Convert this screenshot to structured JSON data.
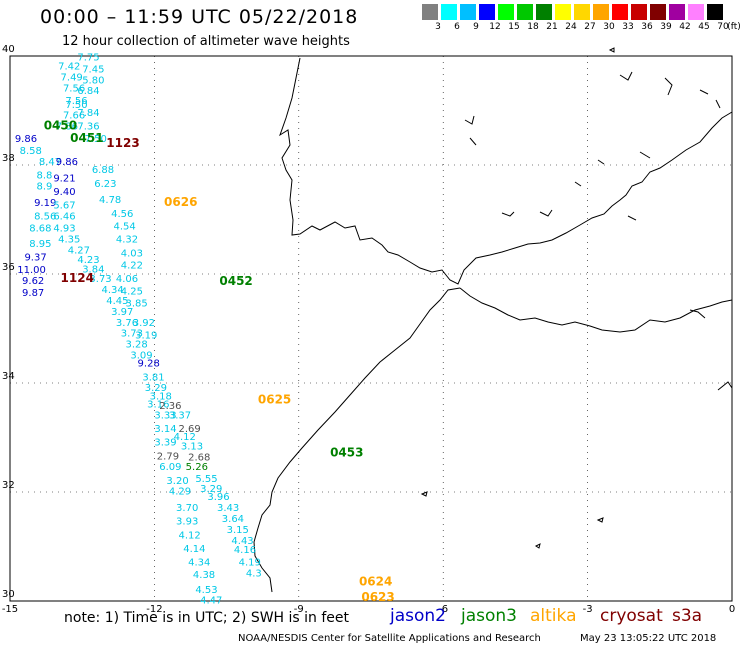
{
  "header": {
    "title": "00:00 – 11:59 UTC 05/22/2018",
    "subtitle": "12 hour collection of altimeter wave heights"
  },
  "legend": {
    "unit": "(ft)",
    "bins": [
      {
        "label": "3",
        "color": "#808080"
      },
      {
        "label": "6",
        "color": "#00ffff"
      },
      {
        "label": "9",
        "color": "#00bfff"
      },
      {
        "label": "12",
        "color": "#0000ff"
      },
      {
        "label": "15",
        "color": "#00ff00"
      },
      {
        "label": "18",
        "color": "#00c800"
      },
      {
        "label": "21",
        "color": "#008000"
      },
      {
        "label": "24",
        "color": "#ffff00"
      },
      {
        "label": "27",
        "color": "#ffd700"
      },
      {
        "label": "30",
        "color": "#ffa500"
      },
      {
        "label": "33",
        "color": "#ff0000"
      },
      {
        "label": "36",
        "color": "#c80000"
      },
      {
        "label": "39",
        "color": "#800000"
      },
      {
        "label": "42",
        "color": "#a000a0"
      },
      {
        "label": "45",
        "color": "#ff80ff"
      },
      {
        "label": "70",
        "color": "#000000"
      }
    ]
  },
  "axes": {
    "lon_ticks": [
      "-15",
      "-12",
      "-9",
      "-6",
      "-3",
      "0"
    ],
    "lat_ticks": [
      "40",
      "38",
      "36",
      "34",
      "32",
      "30"
    ],
    "lon_range": [
      -15,
      0
    ],
    "lat_range": [
      30,
      40
    ]
  },
  "colors": {
    "jason2": "#0000c8",
    "jason3": "#008000",
    "altika": "#ffa500",
    "cryosat": "#800000",
    "s3a": "#800000",
    "cyan_label": "#00c8e6",
    "gray_label": "#505050"
  },
  "pass_labels": [
    {
      "text": "0450",
      "color": "jason3",
      "lon": -14.3,
      "lat": 38.65
    },
    {
      "text": "0451",
      "color": "jason3",
      "lon": -13.75,
      "lat": 38.42
    },
    {
      "text": "1123",
      "color": "cryosat",
      "lon": -13.0,
      "lat": 38.33
    },
    {
      "text": "0626",
      "color": "altika",
      "lon": -11.8,
      "lat": 37.25
    },
    {
      "text": "1124",
      "color": "cryosat",
      "lon": -13.95,
      "lat": 35.85
    },
    {
      "text": "0452",
      "color": "jason3",
      "lon": -10.65,
      "lat": 35.8
    },
    {
      "text": "0625",
      "color": "altika",
      "lon": -9.85,
      "lat": 33.62
    },
    {
      "text": "0453",
      "color": "jason3",
      "lon": -8.35,
      "lat": 32.65
    },
    {
      "text": "0624",
      "color": "altika",
      "lon": -7.75,
      "lat": 30.28
    },
    {
      "text": "0623",
      "color": "altika",
      "lon": -7.7,
      "lat": 30.0
    }
  ],
  "observations": [
    {
      "v": "7.75",
      "c": "cyan_label",
      "lon": -13.6,
      "lat": 39.92
    },
    {
      "v": "7.42",
      "c": "cyan_label",
      "lon": -14.0,
      "lat": 39.75
    },
    {
      "v": "7.45",
      "c": "cyan_label",
      "lon": -13.5,
      "lat": 39.7
    },
    {
      "v": "7.49",
      "c": "cyan_label",
      "lon": -13.95,
      "lat": 39.55
    },
    {
      "v": "5.80",
      "c": "cyan_label",
      "lon": -13.5,
      "lat": 39.5
    },
    {
      "v": "7.56",
      "c": "cyan_label",
      "lon": -13.9,
      "lat": 39.35
    },
    {
      "v": "6.84",
      "c": "cyan_label",
      "lon": -13.6,
      "lat": 39.3
    },
    {
      "v": "7.56",
      "c": "cyan_label",
      "lon": -13.85,
      "lat": 39.12
    },
    {
      "v": "7.50",
      "c": "cyan_label",
      "lon": -13.85,
      "lat": 39.05
    },
    {
      "v": "7.84",
      "c": "cyan_label",
      "lon": -13.6,
      "lat": 38.9
    },
    {
      "v": "7.66",
      "c": "cyan_label",
      "lon": -13.9,
      "lat": 38.85
    },
    {
      "v": "7.86",
      "c": "cyan_label",
      "lon": -14.05,
      "lat": 38.65
    },
    {
      "v": "7.36",
      "c": "cyan_label",
      "lon": -13.6,
      "lat": 38.65
    },
    {
      "v": "7.50",
      "c": "cyan_label",
      "lon": -13.45,
      "lat": 38.42
    },
    {
      "v": "9.86",
      "c": "jason2",
      "lon": -14.9,
      "lat": 38.42
    },
    {
      "v": "8.58",
      "c": "cyan_label",
      "lon": -14.8,
      "lat": 38.2
    },
    {
      "v": "8.47",
      "c": "cyan_label",
      "lon": -14.4,
      "lat": 38.0
    },
    {
      "v": "9.86",
      "c": "jason2",
      "lon": -14.05,
      "lat": 38.0
    },
    {
      "v": "6.88",
      "c": "cyan_label",
      "lon": -13.3,
      "lat": 37.85
    },
    {
      "v": "8.8",
      "c": "cyan_label",
      "lon": -14.45,
      "lat": 37.75
    },
    {
      "v": "9.21",
      "c": "jason2",
      "lon": -14.1,
      "lat": 37.7
    },
    {
      "v": "6.23",
      "c": "cyan_label",
      "lon": -13.25,
      "lat": 37.6
    },
    {
      "v": "8.9",
      "c": "cyan_label",
      "lon": -14.45,
      "lat": 37.55
    },
    {
      "v": "9.40",
      "c": "jason2",
      "lon": -14.1,
      "lat": 37.45
    },
    {
      "v": "4.78",
      "c": "cyan_label",
      "lon": -13.15,
      "lat": 37.3
    },
    {
      "v": "9.19",
      "c": "jason2",
      "lon": -14.5,
      "lat": 37.25
    },
    {
      "v": "5.67",
      "c": "cyan_label",
      "lon": -14.1,
      "lat": 37.2
    },
    {
      "v": "4.56",
      "c": "cyan_label",
      "lon": -12.9,
      "lat": 37.05
    },
    {
      "v": "8.56",
      "c": "cyan_label",
      "lon": -14.5,
      "lat": 37.0
    },
    {
      "v": "6.46",
      "c": "cyan_label",
      "lon": -14.1,
      "lat": 37.0
    },
    {
      "v": "4.54",
      "c": "cyan_label",
      "lon": -12.85,
      "lat": 36.82
    },
    {
      "v": "8.68",
      "c": "cyan_label",
      "lon": -14.6,
      "lat": 36.78
    },
    {
      "v": "4.93",
      "c": "cyan_label",
      "lon": -14.1,
      "lat": 36.78
    },
    {
      "v": "4.35",
      "c": "cyan_label",
      "lon": -14.0,
      "lat": 36.58
    },
    {
      "v": "4.32",
      "c": "cyan_label",
      "lon": -12.8,
      "lat": 36.58
    },
    {
      "v": "8.95",
      "c": "cyan_label",
      "lon": -14.6,
      "lat": 36.5
    },
    {
      "v": "4.27",
      "c": "cyan_label",
      "lon": -13.8,
      "lat": 36.38
    },
    {
      "v": "4.03",
      "c": "cyan_label",
      "lon": -12.7,
      "lat": 36.32
    },
    {
      "v": "9.37",
      "c": "jason2",
      "lon": -14.7,
      "lat": 36.25
    },
    {
      "v": "4.23",
      "c": "cyan_label",
      "lon": -13.6,
      "lat": 36.2
    },
    {
      "v": "4.22",
      "c": "cyan_label",
      "lon": -12.7,
      "lat": 36.1
    },
    {
      "v": "11.00",
      "c": "jason2",
      "lon": -14.85,
      "lat": 36.02
    },
    {
      "v": "3.84",
      "c": "cyan_label",
      "lon": -13.5,
      "lat": 36.03
    },
    {
      "v": "3.73",
      "c": "cyan_label",
      "lon": -13.35,
      "lat": 35.85
    },
    {
      "v": "4.06",
      "c": "cyan_label",
      "lon": -12.8,
      "lat": 35.85
    },
    {
      "v": "9.62",
      "c": "jason2",
      "lon": -14.75,
      "lat": 35.82
    },
    {
      "v": "4.34",
      "c": "cyan_label",
      "lon": -13.1,
      "lat": 35.65
    },
    {
      "v": "4.25",
      "c": "cyan_label",
      "lon": -12.7,
      "lat": 35.62
    },
    {
      "v": "9.87",
      "c": "jason2",
      "lon": -14.75,
      "lat": 35.6
    },
    {
      "v": "4.45",
      "c": "cyan_label",
      "lon": -13.0,
      "lat": 35.45
    },
    {
      "v": "3.85",
      "c": "cyan_label",
      "lon": -12.6,
      "lat": 35.4
    },
    {
      "v": "3.97",
      "c": "cyan_label",
      "lon": -12.9,
      "lat": 35.25
    },
    {
      "v": "3.76",
      "c": "cyan_label",
      "lon": -12.8,
      "lat": 35.05
    },
    {
      "v": "3.92",
      "c": "cyan_label",
      "lon": -12.45,
      "lat": 35.05
    },
    {
      "v": "3.73",
      "c": "cyan_label",
      "lon": -12.7,
      "lat": 34.85
    },
    {
      "v": "3.19",
      "c": "cyan_label",
      "lon": -12.4,
      "lat": 34.82
    },
    {
      "v": "3.28",
      "c": "cyan_label",
      "lon": -12.6,
      "lat": 34.65
    },
    {
      "v": "3.09",
      "c": "cyan_label",
      "lon": -12.5,
      "lat": 34.45
    },
    {
      "v": "9.28",
      "c": "jason2",
      "lon": -12.35,
      "lat": 34.3
    },
    {
      "v": "3.81",
      "c": "cyan_label",
      "lon": -12.25,
      "lat": 34.05
    },
    {
      "v": "3.29",
      "c": "cyan_label",
      "lon": -12.2,
      "lat": 33.85
    },
    {
      "v": "3.18",
      "c": "cyan_label",
      "lon": -12.1,
      "lat": 33.7
    },
    {
      "v": "3.16",
      "c": "cyan_label",
      "lon": -12.15,
      "lat": 33.55
    },
    {
      "v": "2.36",
      "c": "gray_label",
      "lon": -11.9,
      "lat": 33.52
    },
    {
      "v": "3.33",
      "c": "cyan_label",
      "lon": -12.0,
      "lat": 33.35
    },
    {
      "v": "3.37",
      "c": "cyan_label",
      "lon": -11.7,
      "lat": 33.35
    },
    {
      "v": "3.14",
      "c": "cyan_label",
      "lon": -12.0,
      "lat": 33.1
    },
    {
      "v": "2.69",
      "c": "gray_label",
      "lon": -11.5,
      "lat": 33.1
    },
    {
      "v": "4.12",
      "c": "cyan_label",
      "lon": -11.6,
      "lat": 32.95
    },
    {
      "v": "3.39",
      "c": "cyan_label",
      "lon": -12.0,
      "lat": 32.85
    },
    {
      "v": "3.13",
      "c": "cyan_label",
      "lon": -11.45,
      "lat": 32.78
    },
    {
      "v": "2.79",
      "c": "gray_label",
      "lon": -11.95,
      "lat": 32.6
    },
    {
      "v": "2.68",
      "c": "gray_label",
      "lon": -11.3,
      "lat": 32.58
    },
    {
      "v": "6.09",
      "c": "cyan_label",
      "lon": -11.9,
      "lat": 32.4
    },
    {
      "v": "5.26",
      "c": "jason3",
      "lon": -11.35,
      "lat": 32.4
    },
    {
      "v": "3.20",
      "c": "cyan_label",
      "lon": -11.75,
      "lat": 32.15
    },
    {
      "v": "5.55",
      "c": "cyan_label",
      "lon": -11.15,
      "lat": 32.18
    },
    {
      "v": "4.29",
      "c": "cyan_label",
      "lon": -11.7,
      "lat": 31.95
    },
    {
      "v": "3.29",
      "c": "cyan_label",
      "lon": -11.05,
      "lat": 32.0
    },
    {
      "v": "3.96",
      "c": "cyan_label",
      "lon": -10.9,
      "lat": 31.85
    },
    {
      "v": "3.70",
      "c": "cyan_label",
      "lon": -11.55,
      "lat": 31.65
    },
    {
      "v": "3.43",
      "c": "cyan_label",
      "lon": -10.7,
      "lat": 31.65
    },
    {
      "v": "3.93",
      "c": "cyan_label",
      "lon": -11.55,
      "lat": 31.4
    },
    {
      "v": "3.64",
      "c": "cyan_label",
      "lon": -10.6,
      "lat": 31.45
    },
    {
      "v": "3.15",
      "c": "cyan_label",
      "lon": -10.5,
      "lat": 31.25
    },
    {
      "v": "4.12",
      "c": "cyan_label",
      "lon": -11.5,
      "lat": 31.15
    },
    {
      "v": "4.43",
      "c": "cyan_label",
      "lon": -10.4,
      "lat": 31.05
    },
    {
      "v": "4.14",
      "c": "cyan_label",
      "lon": -11.4,
      "lat": 30.9
    },
    {
      "v": "4.16",
      "c": "cyan_label",
      "lon": -10.35,
      "lat": 30.88
    },
    {
      "v": "4.34",
      "c": "cyan_label",
      "lon": -11.3,
      "lat": 30.65
    },
    {
      "v": "4.19",
      "c": "cyan_label",
      "lon": -10.25,
      "lat": 30.65
    },
    {
      "v": "4.38",
      "c": "cyan_label",
      "lon": -11.2,
      "lat": 30.42
    },
    {
      "v": "4.3",
      "c": "cyan_label",
      "lon": -10.1,
      "lat": 30.45
    },
    {
      "v": "4.53",
      "c": "cyan_label",
      "lon": -11.15,
      "lat": 30.15
    },
    {
      "v": "4.47",
      "c": "cyan_label",
      "lon": -11.05,
      "lat": 29.95
    }
  ],
  "footer": {
    "note": "note: 1) Time is in UTC; 2) SWH is in feet",
    "sats": [
      {
        "text": "jason2",
        "color": "jason2"
      },
      {
        "text": "jason3",
        "color": "jason3"
      },
      {
        "text": "altika",
        "color": "altika"
      },
      {
        "text": "cryosat",
        "color": "cryosat"
      },
      {
        "text": "s3a",
        "color": "s3a"
      }
    ],
    "credit": "NOAA/NESDIS Center for Satellite Applications and Research",
    "timestamp": "May 23 13:05:22 UTC 2018"
  }
}
